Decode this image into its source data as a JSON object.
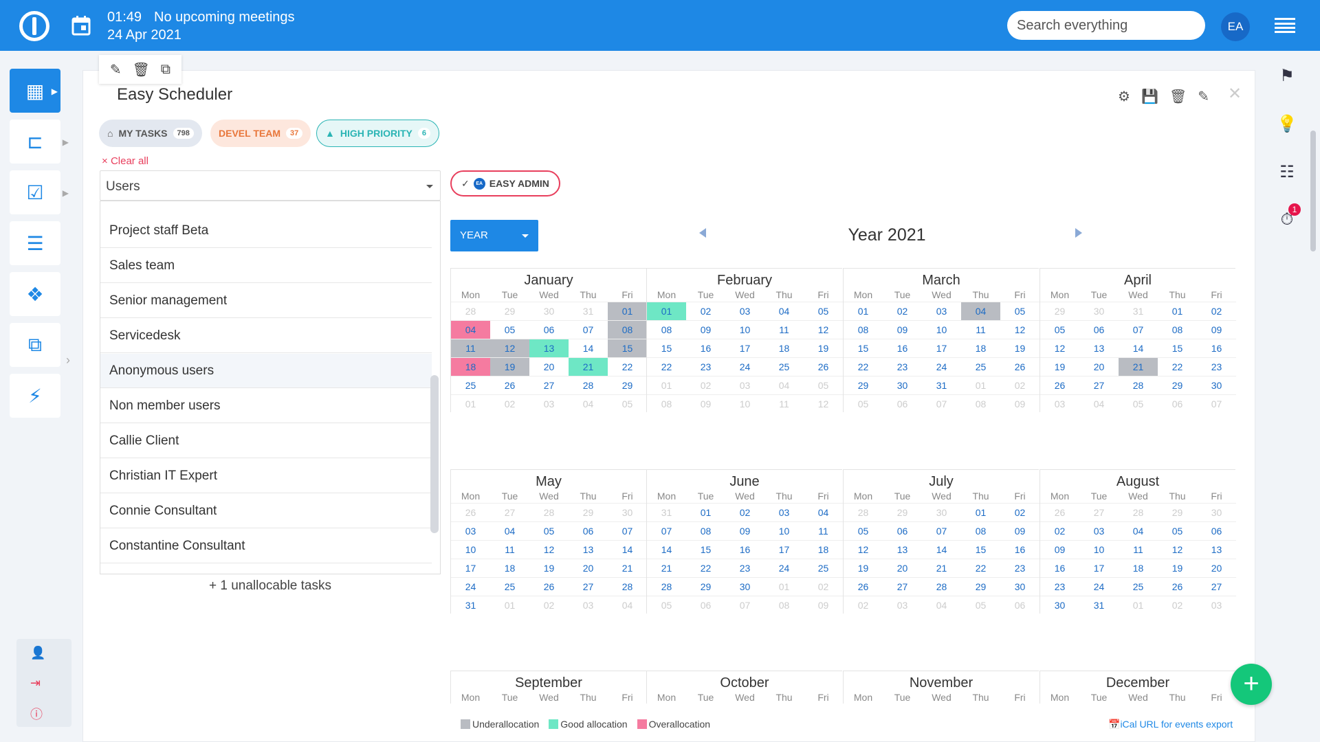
{
  "header": {
    "time": "01:49",
    "meetings": "No upcoming meetings",
    "date": "24 Apr 2021",
    "search_placeholder": "Search everything",
    "avatar": "EA"
  },
  "panel": {
    "title": "Easy Scheduler"
  },
  "filters": [
    {
      "label": "MY TASKS",
      "count": "798",
      "icon": "home-icon"
    },
    {
      "label": "DEVEL TEAM",
      "count": "37"
    },
    {
      "label": "HIGH PRIORITY",
      "count": "6",
      "icon": "warning-icon"
    }
  ],
  "clear_all": "Clear all",
  "users_select": "Users",
  "group_list": [
    "Project staff Beta",
    "Sales team",
    "Senior management",
    "Servicedesk",
    "Anonymous users",
    "Non member users",
    "Callie Client",
    "Christian IT Expert",
    "Connie Consultant",
    "Constantine Consultant"
  ],
  "unallocable": "+ 1 unallocable tasks",
  "user_chip": {
    "label": "EASY ADMIN",
    "avatar": "EA"
  },
  "view_select": "YEAR",
  "year_title": "Year 2021",
  "weekdays": [
    "Mon",
    "Tue",
    "Wed",
    "Thu",
    "Fri"
  ],
  "months": [
    "January",
    "February",
    "March",
    "April",
    "May",
    "June",
    "July",
    "August",
    "September",
    "October",
    "November",
    "December"
  ],
  "allocation_colors": {
    "underallocation": "#b9bcc2",
    "good": "#6ee7c5",
    "overallocation": "#f57ba0"
  },
  "allocations": {
    "underallocation": [
      "2021-01-01",
      "2021-01-08",
      "2021-01-11",
      "2021-01-12",
      "2021-01-15",
      "2021-01-19",
      "2021-03-04",
      "2021-04-21"
    ],
    "good": [
      "2021-01-13",
      "2021-01-21",
      "2021-02-01"
    ],
    "overallocation": [
      "2021-01-04",
      "2021-01-18"
    ]
  },
  "legend": {
    "under": "Underallocation",
    "good": "Good allocation",
    "over": "Overallocation"
  },
  "ical": "iCal URL for events export"
}
